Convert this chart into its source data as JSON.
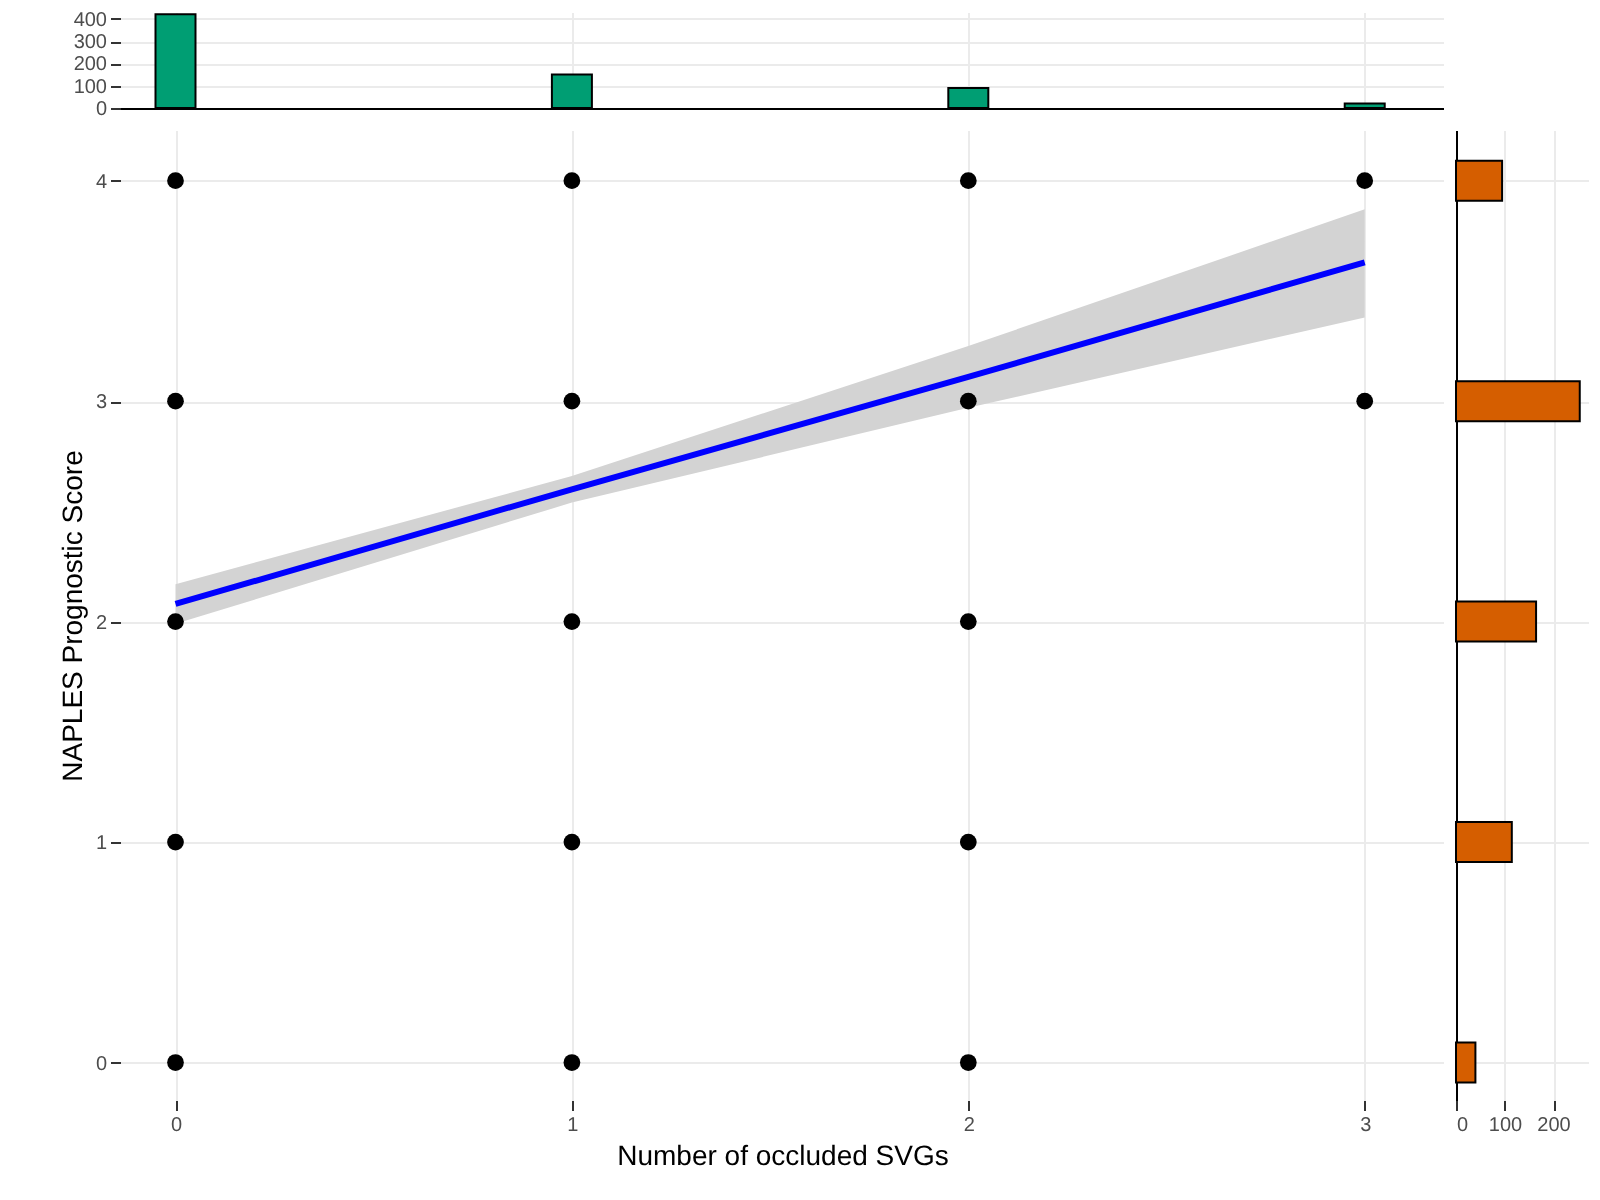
{
  "chart_data": [
    {
      "type": "bar",
      "x": [
        0,
        1,
        2,
        3
      ],
      "values": [
        420,
        150,
        90,
        20
      ],
      "color": "#009e73",
      "xlim": [
        -0.14,
        3.2
      ],
      "xticks": [
        0,
        1,
        2,
        3
      ],
      "ylim": [
        0,
        430
      ],
      "yticks": [
        0,
        100,
        200,
        300,
        400
      ],
      "tick_labels": "y",
      "grid": true
    },
    {
      "type": "scatter",
      "xlabel": "Number of occluded SVGs",
      "ylabel": "NAPLES Prognostic Score",
      "xlim": [
        -0.14,
        3.2
      ],
      "xticks": [
        0,
        1,
        2,
        3
      ],
      "ylim": [
        -0.17,
        4.23
      ],
      "yticks": [
        0,
        1,
        2,
        3,
        4
      ],
      "grid": true,
      "series": [
        {
          "type": "scatter",
          "marker": "circle",
          "color": "#000000",
          "x": [
            0,
            0,
            0,
            0,
            0,
            1,
            1,
            1,
            1,
            1,
            2,
            2,
            2,
            2,
            2,
            3,
            3
          ],
          "values": [
            0,
            1,
            2,
            3,
            4,
            0,
            1,
            2,
            3,
            4,
            0,
            1,
            2,
            3,
            4,
            3,
            4
          ]
        },
        {
          "type": "line",
          "color": "#0000ff",
          "x": [
            0,
            1,
            2,
            3
          ],
          "values": [
            2.08,
            2.6,
            3.11,
            3.63
          ],
          "lower": [
            1.99,
            2.54,
            2.97,
            3.38
          ],
          "upper": [
            2.17,
            2.66,
            3.25,
            3.87
          ]
        }
      ]
    },
    {
      "type": "bar",
      "orientation": "horizontal",
      "x": [
        0,
        1,
        2,
        3,
        4
      ],
      "values": [
        40,
        115,
        165,
        255,
        95
      ],
      "color": "#d55e00",
      "xlim": [
        0,
        272
      ],
      "xticks": [
        0,
        100,
        200
      ],
      "ylim": [
        -0.17,
        4.23
      ],
      "yticks": [
        0,
        1,
        2,
        3,
        4
      ],
      "tick_labels": "x",
      "grid": true
    }
  ]
}
